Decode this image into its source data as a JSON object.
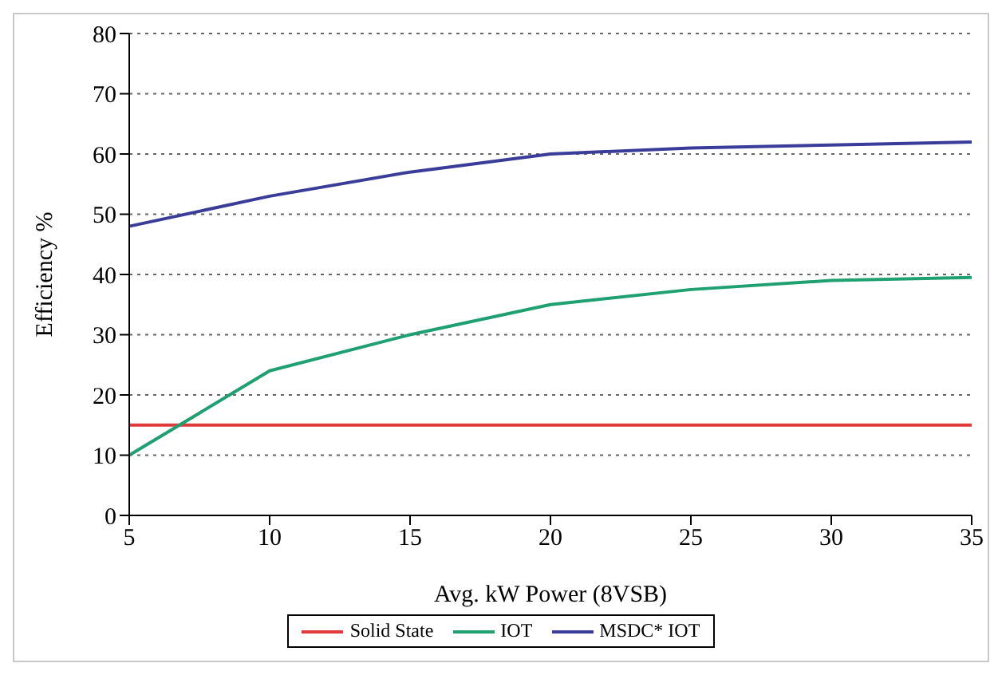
{
  "chart_data": {
    "type": "line",
    "xlabel": "Avg. kW Power (8VSB)",
    "ylabel": "Efficiency %",
    "categories": [
      "5",
      "10",
      "15",
      "20",
      "25",
      "30",
      "35"
    ],
    "series": [
      {
        "name": "Solid State",
        "color": "#e03a3a",
        "values": [
          15,
          15,
          15,
          15,
          15,
          15,
          15
        ]
      },
      {
        "name": "IOT",
        "color": "#1fa070",
        "values": [
          10,
          24,
          30,
          35,
          37.5,
          39,
          39.5
        ]
      },
      {
        "name": "MSDC* IOT",
        "color": "#3a3c9a",
        "values": [
          48,
          53,
          57,
          60,
          61,
          61.5,
          62
        ]
      }
    ],
    "ylim": [
      0,
      80
    ],
    "yticks": [
      0,
      10,
      20,
      30,
      40,
      50,
      60,
      70,
      80
    ],
    "grid": "y",
    "legend": "bottom",
    "marker": "none",
    "line_style": "solid"
  }
}
